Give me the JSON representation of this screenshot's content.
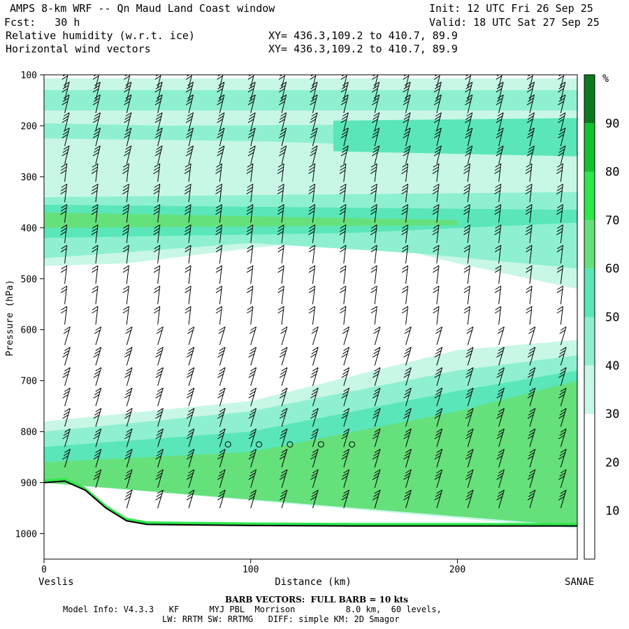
{
  "header": {
    "title": "AMPS 8-km WRF -- Qn Maud Land Coast window",
    "init": "Init: 12 UTC Fri 26 Sep 25",
    "fcst": "Fcst:   30 h",
    "valid": "Valid: 18 UTC Sat 27 Sep 25",
    "field1": "Relative humidity (w.r.t. ice)",
    "field2": "Horizontal wind vectors",
    "xy1": "XY= 436.3,109.2 to 410.7, 89.9",
    "xy2": "XY= 436.3,109.2 to 410.7, 89.9"
  },
  "footer": {
    "barb_note": "BARB VECTORS:  FULL BARB = 10 kts",
    "model_line": "Model Info: V4.3.3   KF      MYJ PBL  Morrison          8.0 km,  60 levels,",
    "model_line2": "LW: RRTM SW: RRTMG   DIFF: simple KM: 2D Smagor"
  },
  "colors": {
    "rh_30_40": "#c8f7e6",
    "rh_40_50": "#8ef0d0",
    "rh_50_60": "#5ae6b8",
    "rh_60_70": "#66e07a",
    "rh_70_80": "#2de84a",
    "rh_80_90": "#12c22e",
    "rh_90_100": "#0b7a1e",
    "terrain": "#000000"
  },
  "chart_data": {
    "type": "cross-section",
    "ylabel": "Pressure (hPa)",
    "xlabel": "Distance (km)",
    "x_start_label": "Veslis",
    "x_end_label": "SANAE",
    "x_ticks": [
      0,
      100,
      200
    ],
    "x_range": [
      0,
      258
    ],
    "y_ticks": [
      100,
      200,
      300,
      400,
      500,
      600,
      700,
      800,
      900,
      1000
    ],
    "y_range": [
      100,
      1050
    ],
    "colorbar": {
      "unit": "%",
      "levels": [
        10,
        20,
        30,
        40,
        50,
        60,
        70,
        80,
        90
      ],
      "range": [
        0,
        100
      ]
    },
    "rh_layers": [
      {
        "level": 30,
        "top": [
          [
            0,
            107
          ],
          [
            258,
            107
          ]
        ],
        "bottom": [
          [
            0,
            475
          ],
          [
            40,
            470
          ],
          [
            100,
            440
          ],
          [
            150,
            420
          ],
          [
            200,
            470
          ],
          [
            258,
            520
          ]
        ]
      },
      {
        "level": 40,
        "top": [
          [
            0,
            130
          ],
          [
            258,
            130
          ]
        ],
        "bottom": [
          [
            0,
            170
          ],
          [
            258,
            170
          ]
        ]
      },
      {
        "level": 40,
        "top": [
          [
            0,
            195
          ],
          [
            60,
            200
          ],
          [
            258,
            195
          ]
        ],
        "bottom": [
          [
            0,
            225
          ],
          [
            100,
            230
          ],
          [
            258,
            250
          ]
        ]
      },
      {
        "level": 50,
        "top": [
          [
            140,
            190
          ],
          [
            258,
            185
          ]
        ],
        "bottom": [
          [
            140,
            250
          ],
          [
            258,
            260
          ]
        ]
      },
      {
        "level": 40,
        "top": [
          [
            0,
            340
          ],
          [
            258,
            330
          ]
        ],
        "bottom": [
          [
            0,
            460
          ],
          [
            100,
            430
          ],
          [
            180,
            450
          ],
          [
            258,
            480
          ]
        ]
      },
      {
        "level": 50,
        "top": [
          [
            0,
            355
          ],
          [
            258,
            365
          ]
        ],
        "bottom": [
          [
            0,
            420
          ],
          [
            150,
            410
          ],
          [
            258,
            390
          ]
        ]
      },
      {
        "level": 60,
        "top": [
          [
            0,
            370
          ],
          [
            200,
            385
          ]
        ],
        "bottom": [
          [
            0,
            400
          ],
          [
            200,
            395
          ]
        ]
      },
      {
        "level": 30,
        "top": [
          [
            0,
            780
          ],
          [
            100,
            740
          ],
          [
            200,
            640
          ],
          [
            258,
            620
          ]
        ],
        "bottom": [
          [
            0,
            900
          ],
          [
            258,
            990
          ]
        ]
      },
      {
        "level": 40,
        "top": [
          [
            0,
            800
          ],
          [
            100,
            760
          ],
          [
            200,
            680
          ],
          [
            258,
            650
          ]
        ],
        "bottom": [
          [
            0,
            900
          ],
          [
            258,
            985
          ]
        ]
      },
      {
        "level": 50,
        "top": [
          [
            0,
            830
          ],
          [
            100,
            800
          ],
          [
            200,
            720
          ],
          [
            258,
            680
          ]
        ],
        "bottom": [
          [
            0,
            900
          ],
          [
            258,
            985
          ]
        ]
      },
      {
        "level": 60,
        "top": [
          [
            0,
            860
          ],
          [
            100,
            840
          ],
          [
            200,
            760
          ],
          [
            258,
            700
          ]
        ],
        "bottom": [
          [
            0,
            900
          ],
          [
            258,
            985
          ]
        ]
      }
    ],
    "terrain_pressure": [
      {
        "x": 0,
        "p": 900
      },
      {
        "x": 10,
        "p": 897
      },
      {
        "x": 20,
        "p": 915
      },
      {
        "x": 30,
        "p": 950
      },
      {
        "x": 40,
        "p": 975
      },
      {
        "x": 50,
        "p": 982
      },
      {
        "x": 100,
        "p": 984
      },
      {
        "x": 150,
        "p": 985
      },
      {
        "x": 200,
        "p": 985
      },
      {
        "x": 258,
        "p": 985
      }
    ],
    "calm_points": [
      {
        "x": 89,
        "p": 825
      },
      {
        "x": 104,
        "p": 825
      },
      {
        "x": 119,
        "p": 825
      },
      {
        "x": 134,
        "p": 825
      },
      {
        "x": 149,
        "p": 825
      }
    ],
    "barb_columns_km": [
      10,
      25,
      40,
      55,
      70,
      85,
      100,
      115,
      130,
      145,
      160,
      175,
      190,
      205,
      220,
      235,
      250
    ],
    "barb_levels_hpa": [
      125,
      150,
      175,
      210,
      240,
      275,
      310,
      350,
      390,
      430,
      470,
      510,
      550,
      590,
      630,
      670,
      710,
      750,
      790,
      830,
      870,
      910,
      950
    ]
  }
}
